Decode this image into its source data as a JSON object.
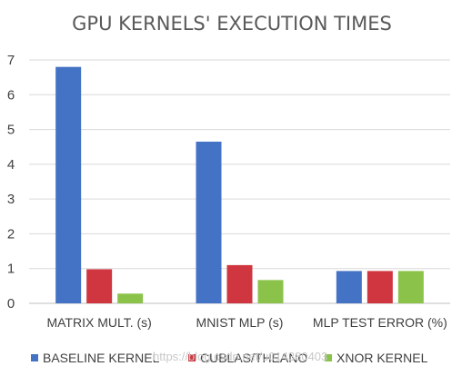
{
  "chart_data": {
    "type": "bar",
    "title": "GPU KERNELS' EXECUTION TIMES",
    "categories": [
      "MATRIX MULT. (s)",
      "MNIST MLP (s)",
      "MLP TEST ERROR (%)"
    ],
    "series": [
      {
        "name": "BASELINE KERNEL",
        "color": "#4472c4",
        "values": [
          6.8,
          4.65,
          0.93
        ]
      },
      {
        "name": "CUBLAS/THEANO",
        "color": "#d0363f",
        "values": [
          0.98,
          1.1,
          0.93
        ]
      },
      {
        "name": "XNOR KERNEL",
        "color": "#8bc34a",
        "values": [
          0.28,
          0.67,
          0.93
        ]
      }
    ],
    "yticks": [
      0,
      1,
      2,
      3,
      4,
      5,
      6,
      7
    ],
    "ylim": [
      0,
      7
    ],
    "grid": true,
    "legend_position": "bottom"
  },
  "watermark": "https://blog.csdn.net/u014380403"
}
